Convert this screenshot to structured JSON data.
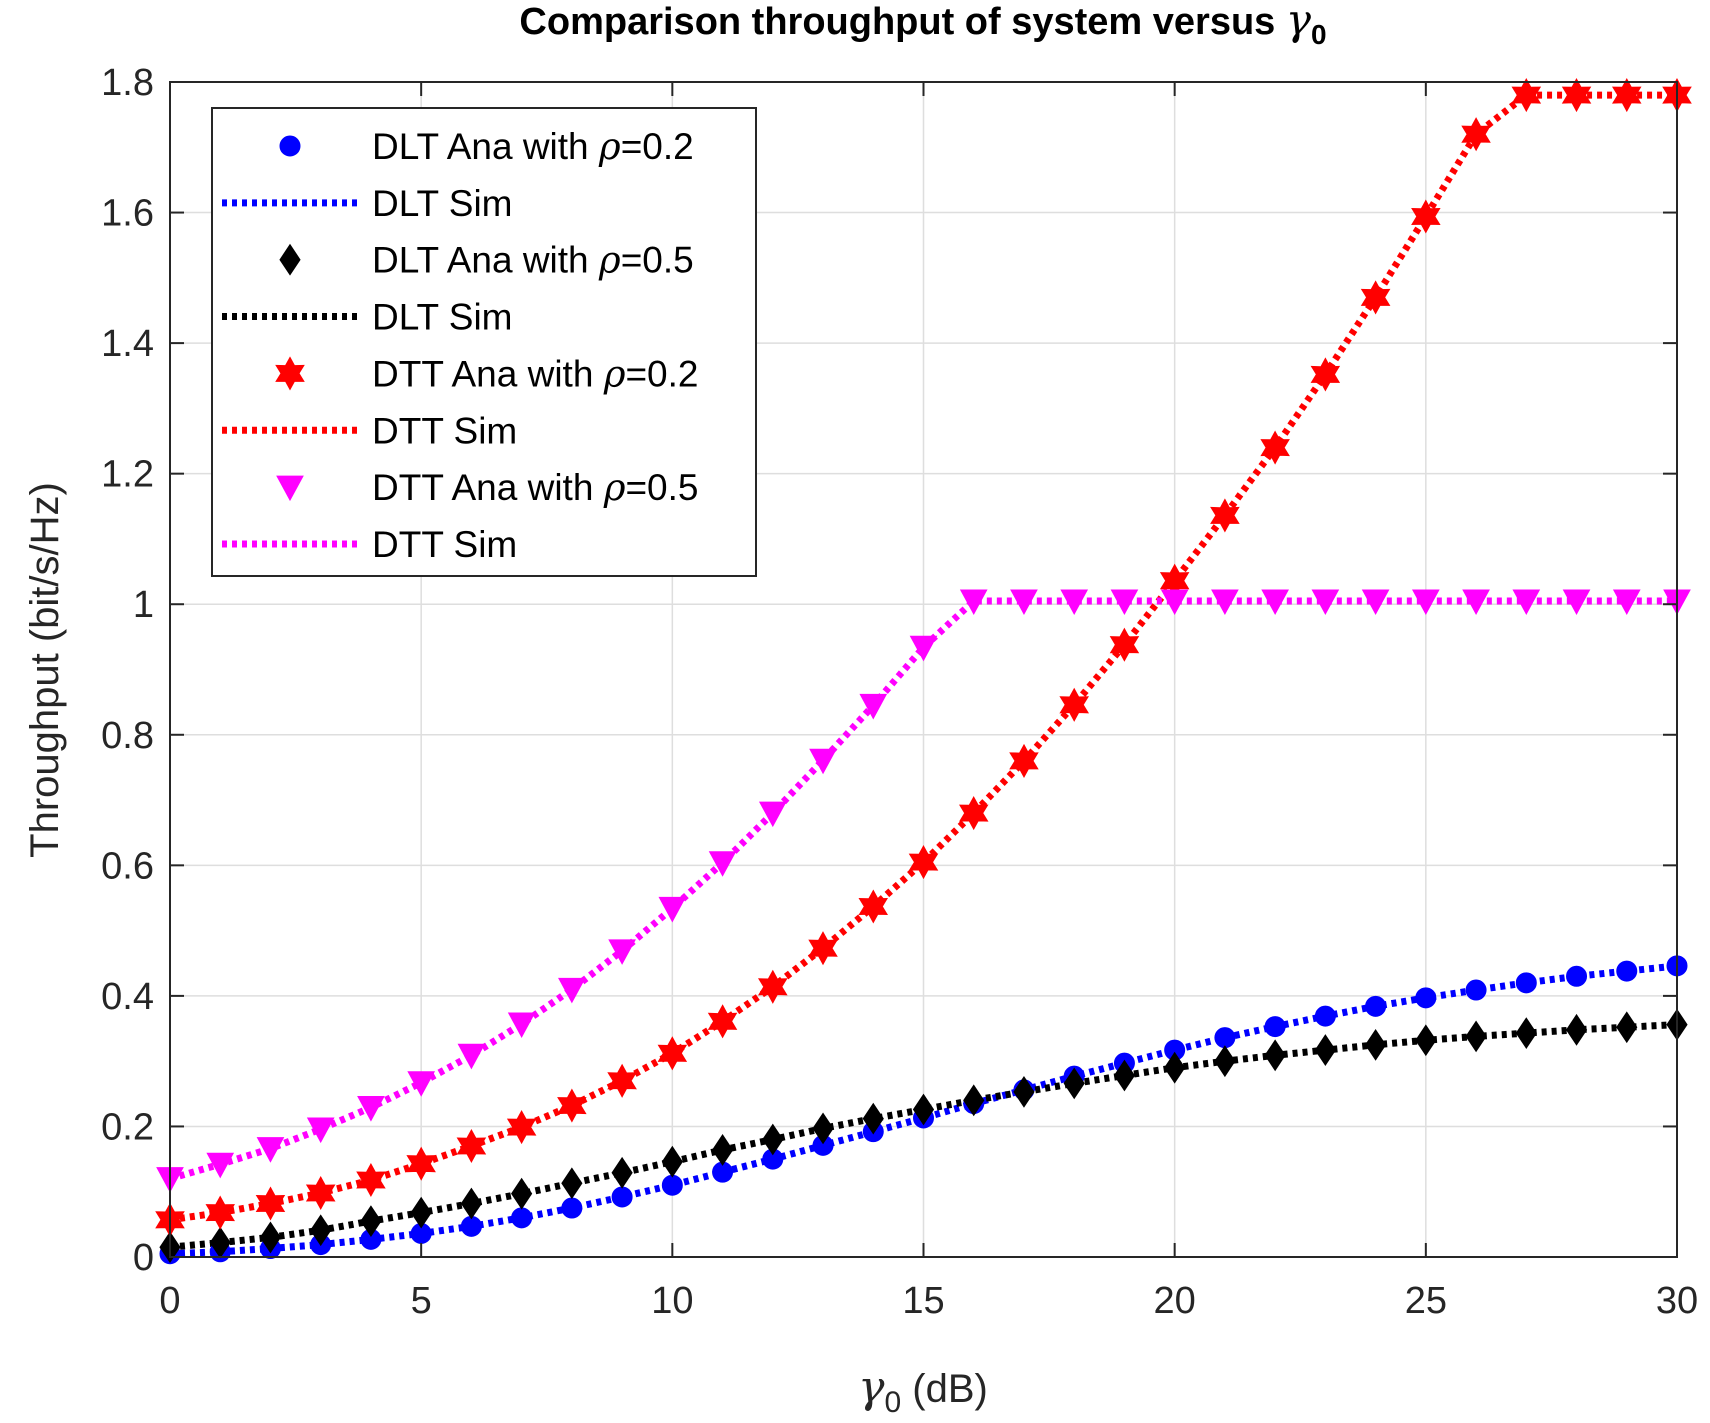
{
  "chart_data": {
    "type": "line",
    "title": "Comparison throughput of system versus ",
    "title_symbol": "γ",
    "title_subscript": "0",
    "xlabel_symbol": "γ",
    "xlabel_subscript": "0",
    "xlabel_suffix": " (dB)",
    "ylabel": "Throughput (bit/s/Hz)",
    "xlim": [
      0,
      30
    ],
    "ylim": [
      0,
      1.8
    ],
    "xticks": [
      0,
      5,
      10,
      15,
      20,
      25,
      30
    ],
    "xtick_labels": [
      "0",
      "5",
      "10",
      "15",
      "20",
      "25",
      "30"
    ],
    "yticks": [
      0,
      0.2,
      0.4,
      0.6,
      0.8,
      1,
      1.2,
      1.4,
      1.6,
      1.8
    ],
    "ytick_labels": [
      "0",
      "0.2",
      "0.4",
      "0.6",
      "0.8",
      "1",
      "1.2",
      "1.4",
      "1.6",
      "1.8"
    ],
    "grid": true,
    "legend_position": "top-left",
    "x": [
      0,
      1,
      2,
      3,
      4,
      5,
      6,
      7,
      8,
      9,
      10,
      11,
      12,
      13,
      14,
      15,
      16,
      17,
      18,
      19,
      20,
      21,
      22,
      23,
      24,
      25,
      26,
      27,
      28,
      29,
      30
    ],
    "series": [
      {
        "name": "DLT Ana with ρ=0.2",
        "legend_prefix": "DLT Ana with ",
        "legend_symbol": "ρ",
        "legend_suffix": "=0.2",
        "kind": "marker",
        "marker": "circle",
        "color": "#0000ff",
        "values": [
          0.005,
          0.008,
          0.013,
          0.019,
          0.027,
          0.036,
          0.047,
          0.06,
          0.075,
          0.092,
          0.11,
          0.13,
          0.15,
          0.171,
          0.192,
          0.213,
          0.235,
          0.256,
          0.277,
          0.297,
          0.317,
          0.336,
          0.353,
          0.369,
          0.384,
          0.397,
          0.409,
          0.42,
          0.43,
          0.438,
          0.446
        ]
      },
      {
        "name": "DLT Sim",
        "legend_prefix": "DLT Sim",
        "legend_symbol": "",
        "legend_suffix": "",
        "kind": "line",
        "color": "#0000ff",
        "values": [
          0.005,
          0.008,
          0.013,
          0.019,
          0.027,
          0.036,
          0.047,
          0.06,
          0.075,
          0.092,
          0.11,
          0.13,
          0.15,
          0.171,
          0.192,
          0.213,
          0.235,
          0.256,
          0.277,
          0.297,
          0.317,
          0.336,
          0.353,
          0.369,
          0.384,
          0.397,
          0.409,
          0.42,
          0.43,
          0.438,
          0.446
        ]
      },
      {
        "name": "DLT Ana with ρ=0.5",
        "legend_prefix": "DLT Ana with ",
        "legend_symbol": "ρ",
        "legend_suffix": "=0.5",
        "kind": "marker",
        "marker": "diamond",
        "color": "#000000",
        "values": [
          0.015,
          0.022,
          0.03,
          0.041,
          0.055,
          0.068,
          0.082,
          0.097,
          0.113,
          0.129,
          0.146,
          0.164,
          0.18,
          0.197,
          0.212,
          0.226,
          0.24,
          0.253,
          0.266,
          0.278,
          0.29,
          0.3,
          0.309,
          0.317,
          0.325,
          0.332,
          0.338,
          0.343,
          0.348,
          0.352,
          0.356
        ]
      },
      {
        "name": "DLT Sim",
        "legend_prefix": "DLT Sim",
        "legend_symbol": "",
        "legend_suffix": "",
        "kind": "line",
        "color": "#000000",
        "values": [
          0.015,
          0.022,
          0.03,
          0.041,
          0.055,
          0.068,
          0.082,
          0.097,
          0.113,
          0.129,
          0.146,
          0.164,
          0.18,
          0.197,
          0.212,
          0.226,
          0.24,
          0.253,
          0.266,
          0.278,
          0.29,
          0.3,
          0.309,
          0.317,
          0.325,
          0.332,
          0.338,
          0.343,
          0.348,
          0.352,
          0.356
        ]
      },
      {
        "name": "DTT Ana with ρ=0.2",
        "legend_prefix": "DTT Ana with ",
        "legend_symbol": "ρ",
        "legend_suffix": "=0.2",
        "kind": "marker",
        "marker": "hexagram",
        "color": "#ff0000",
        "values": [
          0.057,
          0.068,
          0.082,
          0.098,
          0.118,
          0.143,
          0.17,
          0.199,
          0.232,
          0.27,
          0.312,
          0.361,
          0.414,
          0.473,
          0.537,
          0.605,
          0.68,
          0.76,
          0.846,
          0.938,
          1.036,
          1.136,
          1.24,
          1.352,
          1.47,
          1.594,
          1.72,
          1.78,
          1.78,
          1.78,
          1.78
        ]
      },
      {
        "name": "DTT Sim",
        "legend_prefix": "DTT Sim",
        "legend_symbol": "",
        "legend_suffix": "",
        "kind": "line",
        "color": "#ff0000",
        "values": [
          0.057,
          0.068,
          0.082,
          0.098,
          0.118,
          0.143,
          0.17,
          0.199,
          0.232,
          0.27,
          0.312,
          0.361,
          0.414,
          0.473,
          0.537,
          0.605,
          0.68,
          0.76,
          0.846,
          0.938,
          1.036,
          1.136,
          1.24,
          1.352,
          1.47,
          1.594,
          1.72,
          1.78,
          1.78,
          1.78,
          1.78
        ]
      },
      {
        "name": "DTT Ana with ρ=0.5",
        "legend_prefix": "DTT Ana with ",
        "legend_symbol": "ρ",
        "legend_suffix": "=0.5",
        "kind": "marker",
        "marker": "triangle-down",
        "color": "#ff00ff",
        "values": [
          0.12,
          0.142,
          0.166,
          0.196,
          0.229,
          0.267,
          0.309,
          0.357,
          0.41,
          0.469,
          0.534,
          0.604,
          0.68,
          0.761,
          0.845,
          0.934,
          1.005,
          1.005,
          1.005,
          1.005,
          1.005,
          1.005,
          1.005,
          1.005,
          1.005,
          1.005,
          1.005,
          1.005,
          1.005,
          1.005,
          1.005
        ]
      },
      {
        "name": "DTT Sim",
        "legend_prefix": "DTT Sim",
        "legend_symbol": "",
        "legend_suffix": "",
        "kind": "line",
        "color": "#ff00ff",
        "values": [
          0.12,
          0.142,
          0.166,
          0.196,
          0.229,
          0.267,
          0.309,
          0.357,
          0.41,
          0.469,
          0.534,
          0.604,
          0.68,
          0.761,
          0.845,
          0.934,
          1.005,
          1.005,
          1.005,
          1.005,
          1.005,
          1.005,
          1.005,
          1.005,
          1.005,
          1.005,
          1.005,
          1.005,
          1.005,
          1.005,
          1.005
        ]
      }
    ]
  }
}
